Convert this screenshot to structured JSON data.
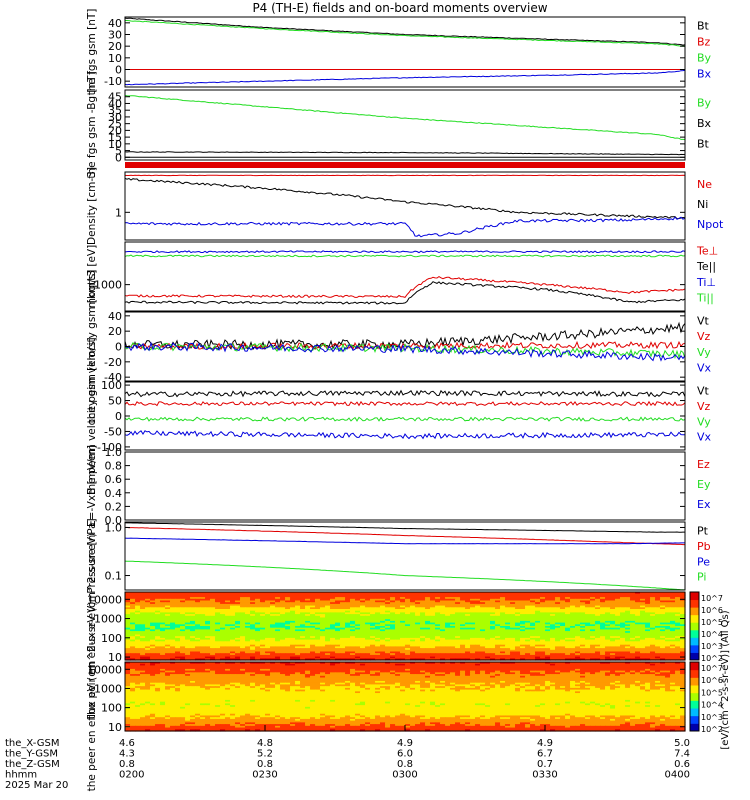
{
  "title": "P4 (TH-E) fields and on-board moments overview",
  "colors": {
    "black": "#000000",
    "red": "#e00000",
    "green": "#22dd22",
    "blue": "#0000dd",
    "spec_cmap": [
      "#0000aa",
      "#0044ff",
      "#00bbff",
      "#00ff99",
      "#aaff00",
      "#ffee00",
      "#ff9900",
      "#ff3300",
      "#dd0000"
    ]
  },
  "chart_data": [
    {
      "type": "line",
      "ylabel": "the fgs gsm [nT]",
      "ylim": [
        -15,
        45
      ],
      "yticks": [
        -10,
        0,
        10,
        20,
        30,
        40
      ],
      "log": false,
      "series": [
        {
          "name": "Bt",
          "color": "#000000",
          "x": [
            0,
            0.25,
            0.5,
            0.75,
            0.95,
            1.0
          ],
          "y": [
            44,
            36,
            30,
            26,
            23,
            21
          ],
          "noise": 0.3
        },
        {
          "name": "Bz",
          "color": "#e00000",
          "x": [
            0,
            1
          ],
          "y": [
            0,
            0
          ],
          "noise": 0
        },
        {
          "name": "By",
          "color": "#22dd22",
          "x": [
            0,
            0.25,
            0.5,
            0.75,
            0.95,
            1.0
          ],
          "y": [
            42,
            35,
            29,
            25,
            22,
            20
          ],
          "noise": 0.3
        },
        {
          "name": "Bx",
          "color": "#0000dd",
          "x": [
            0,
            0.25,
            0.5,
            0.75,
            0.95,
            1.0
          ],
          "y": [
            -13,
            -10,
            -7,
            -5,
            -3,
            -1
          ],
          "noise": 0.3
        }
      ]
    },
    {
      "type": "line",
      "ylabel": "the fgs gsm -Bg [nT]",
      "ylim": [
        -2,
        50
      ],
      "yticks": [
        0,
        5,
        10,
        15,
        20,
        25,
        30,
        35,
        40,
        45
      ],
      "log": false,
      "series": [
        {
          "name": "By",
          "color": "#22dd22",
          "x": [
            0,
            0.5,
            0.95,
            1.0
          ],
          "y": [
            46,
            29,
            17,
            13
          ],
          "noise": 0.3
        },
        {
          "name": "Bx",
          "color": "#000000",
          "x": [
            0,
            0.5,
            1.0
          ],
          "y": [
            4,
            3.5,
            2
          ],
          "noise": 0.2
        },
        {
          "name": "Bt",
          "color": "#000000",
          "x": [
            0,
            1.0
          ],
          "y": [
            0,
            0
          ],
          "noise": 0
        }
      ]
    },
    {
      "type": "line",
      "ylabel": "Density [cm-3]",
      "ylim": [
        0.45,
        3.2
      ],
      "yticks": [
        1
      ],
      "log": true,
      "series": [
        {
          "name": "Ne",
          "color": "#e00000",
          "x": [
            0,
            1
          ],
          "y": [
            2.9,
            2.9
          ],
          "noise": 0.005
        },
        {
          "name": "Ni",
          "color": "#000000",
          "x": [
            0,
            0.25,
            0.5,
            0.7,
            0.9,
            1.0
          ],
          "y": [
            2.6,
            2.0,
            1.35,
            1.0,
            0.9,
            0.85
          ],
          "noise": 0.03
        },
        {
          "name": "Npot",
          "color": "#0000dd",
          "x": [
            0,
            0.5,
            0.52,
            0.6,
            0.7,
            0.9,
            1.0
          ],
          "y": [
            0.72,
            0.72,
            0.5,
            0.55,
            0.78,
            0.8,
            0.85
          ],
          "noise": 0.04
        }
      ]
    },
    {
      "type": "line",
      "ylabel": "moqtt3 [eV]",
      "ylim": [
        300,
        7000
      ],
      "yticks": [
        1000
      ],
      "log": true,
      "series": [
        {
          "name": "Te⊥",
          "color": "#e00000",
          "x": [
            0,
            0.5,
            0.55,
            0.75,
            0.9,
            1.0
          ],
          "y": [
            600,
            580,
            1400,
            1000,
            700,
            800
          ],
          "noise": 0.05
        },
        {
          "name": "Te||",
          "color": "#000000",
          "x": [
            0,
            0.5,
            0.55,
            0.75,
            0.9,
            1.0
          ],
          "y": [
            450,
            430,
            1100,
            800,
            450,
            500
          ],
          "noise": 0.05
        },
        {
          "name": "Ti⊥",
          "color": "#0000dd",
          "x": [
            0,
            1
          ],
          "y": [
            4500,
            4500
          ],
          "noise": 0.04
        },
        {
          "name": "Ti||",
          "color": "#22dd22",
          "x": [
            0,
            1
          ],
          "y": [
            3700,
            3700
          ],
          "noise": 0.04
        }
      ]
    },
    {
      "type": "line",
      "ylabel": "the peim velocity gsm [km/s]",
      "ylim": [
        -45,
        45
      ],
      "yticks": [
        -40,
        -20,
        0,
        20,
        40
      ],
      "log": false,
      "series": [
        {
          "name": "Vt",
          "color": "#000000",
          "x": [
            0,
            0.5,
            0.8,
            1.0
          ],
          "y": [
            2,
            3,
            15,
            25
          ],
          "noise": 6
        },
        {
          "name": "Vz",
          "color": "#e00000",
          "x": [
            0,
            1
          ],
          "y": [
            0,
            2
          ],
          "noise": 4
        },
        {
          "name": "Vy",
          "color": "#22dd22",
          "x": [
            0,
            0.5,
            1.0
          ],
          "y": [
            0,
            -2,
            -10
          ],
          "noise": 5
        },
        {
          "name": "Vx",
          "color": "#0000dd",
          "x": [
            0,
            0.5,
            1.0
          ],
          "y": [
            0,
            -3,
            -15
          ],
          "noise": 5
        }
      ]
    },
    {
      "type": "line",
      "ylabel": "the peem velocity gsm [km/s]",
      "ylim": [
        -110,
        110
      ],
      "yticks": [
        -100,
        -50,
        0,
        50,
        100
      ],
      "log": false,
      "series": [
        {
          "name": "Vt",
          "color": "#000000",
          "x": [
            0,
            0.5,
            1.0
          ],
          "y": [
            70,
            75,
            70
          ],
          "noise": 8
        },
        {
          "name": "Vz",
          "color": "#e00000",
          "x": [
            0,
            1
          ],
          "y": [
            40,
            40
          ],
          "noise": 6
        },
        {
          "name": "Vy",
          "color": "#22dd22",
          "x": [
            0,
            1
          ],
          "y": [
            -10,
            -10
          ],
          "noise": 6
        },
        {
          "name": "Vx",
          "color": "#0000dd",
          "x": [
            0,
            0.5,
            1.0
          ],
          "y": [
            -55,
            -65,
            -60
          ],
          "noise": 8
        }
      ]
    },
    {
      "type": "line",
      "ylabel": "E=-VxB [mV/m]",
      "ylim": [
        0,
        1
      ],
      "yticks": [
        0,
        0.2,
        0.4,
        0.6,
        0.8,
        1.0
      ],
      "ytickfmt": 1,
      "log": false,
      "series": [
        {
          "name": "Ez",
          "color": "#e00000",
          "x": [],
          "y": [],
          "noise": 0
        },
        {
          "name": "Ey",
          "color": "#22dd22",
          "x": [],
          "y": [],
          "noise": 0
        },
        {
          "name": "Ex",
          "color": "#0000dd",
          "x": [],
          "y": [],
          "noise": 0
        }
      ]
    },
    {
      "type": "line",
      "ylabel": "Pressure [nPa]",
      "ylim": [
        0.05,
        1.3
      ],
      "yticks": [
        0.1,
        1.0
      ],
      "ytickfmt": 1,
      "log": true,
      "series": [
        {
          "name": "Pt",
          "color": "#000000",
          "x": [
            0,
            0.5,
            0.95,
            1.0
          ],
          "y": [
            1.25,
            0.95,
            0.8,
            0.8
          ],
          "noise": 0.005
        },
        {
          "name": "Pb",
          "color": "#e00000",
          "x": [
            0,
            0.5,
            0.9,
            1.0
          ],
          "y": [
            1.0,
            0.68,
            0.48,
            0.44
          ],
          "noise": 0.005
        },
        {
          "name": "Pe",
          "color": "#0000dd",
          "x": [
            0,
            0.5,
            0.9,
            1.0
          ],
          "y": [
            0.6,
            0.46,
            0.46,
            0.48
          ],
          "noise": 0.005
        },
        {
          "name": "Pi",
          "color": "#22dd22",
          "x": [
            0,
            0.5,
            1.0
          ],
          "y": [
            0.2,
            0.1,
            0.05
          ],
          "noise": 0.003
        }
      ]
    },
    {
      "type": "heatmap",
      "ylabel": "the peir en eflux eV (cm^2-s-sr-eV)",
      "ylim": [
        7,
        24000
      ],
      "yticks": [
        10,
        100,
        1000,
        10000
      ],
      "log": true,
      "profile": [
        0.85,
        0.8,
        0.75,
        0.65,
        0.55,
        0.5,
        0.45,
        0.45,
        0.5,
        0.55,
        0.62,
        0.7,
        0.8,
        0.9
      ]
    },
    {
      "type": "heatmap",
      "ylabel": "the peer en eflux eV (cm^2-s-sr-eV)",
      "ylim": [
        6,
        24000
      ],
      "yticks": [
        10,
        100,
        1000,
        10000
      ],
      "log": true,
      "profile": [
        0.88,
        0.82,
        0.78,
        0.72,
        0.68,
        0.65,
        0.62,
        0.6,
        0.58,
        0.6,
        0.64,
        0.7,
        0.78,
        0.86
      ]
    }
  ],
  "colorbar": {
    "label": "[eV/(cm^2-s-sr-eV)] (All Qs)",
    "ticks": [
      "10^7",
      "10^6",
      "10^5",
      "10^4",
      "10^3",
      "10^2"
    ]
  },
  "xaxis": {
    "rows": [
      {
        "label": "the_X-GSM",
        "values": [
          "4.6",
          "4.8",
          "4.9",
          "4.9",
          "5.0"
        ]
      },
      {
        "label": "the_Y-GSM",
        "values": [
          "4.3",
          "5.2",
          "6.0",
          "6.7",
          "7.4"
        ]
      },
      {
        "label": "the_Z-GSM",
        "values": [
          "0.8",
          "0.8",
          "0.8",
          "0.7",
          "0.6"
        ]
      },
      {
        "label": "hhmm",
        "values": [
          "0200",
          "0230",
          "0300",
          "0330",
          "0400"
        ]
      }
    ],
    "date": "2025 Mar 20",
    "tick_fractions": [
      0,
      0.25,
      0.5,
      0.75,
      1.0
    ]
  }
}
